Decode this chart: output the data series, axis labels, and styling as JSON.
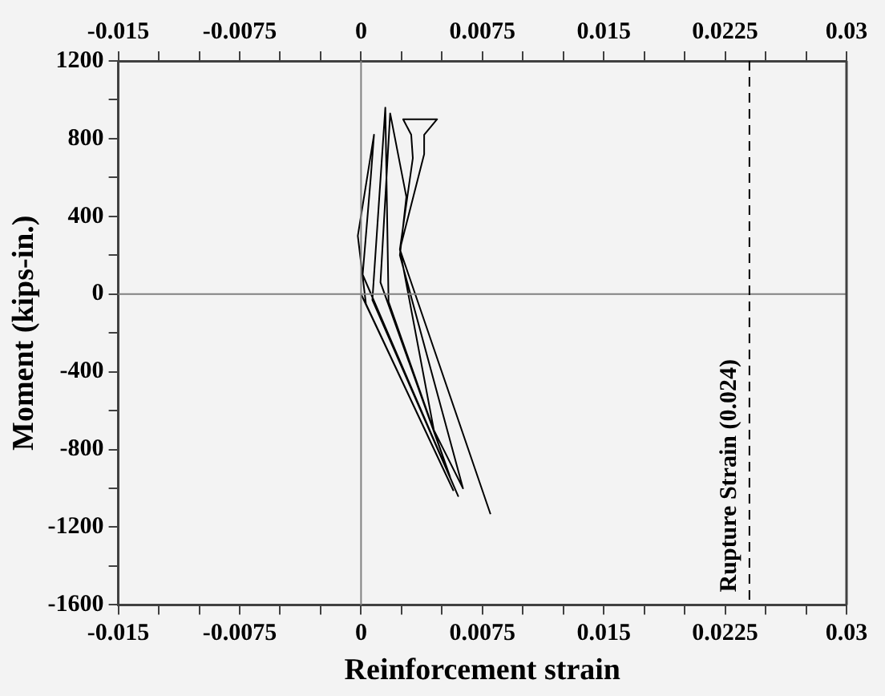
{
  "chart_data": {
    "type": "line",
    "xlabel": "Reinforcement strain",
    "ylabel": "Moment (kips-in.)",
    "x": [
      0,
      0.0057,
      0.0003,
      -0.0002,
      0.0008,
      0.0006,
      0.0001,
      0.006,
      0.0007,
      0.0015,
      0.0017,
      0.0055,
      0.0012,
      0.0018,
      0.0028,
      0.0024,
      0.0063,
      0.0045,
      0.0024,
      0.0039,
      0.0039,
      0.0047,
      0.0026,
      0.0031,
      0.0032,
      0.0024,
      0.008
    ],
    "series": [
      {
        "color": "#000000",
        "values": [
          0,
          -1010,
          -50,
          300,
          820,
          600,
          100,
          -1040,
          -30,
          960,
          -40,
          -940,
          60,
          930,
          500,
          200,
          -1000,
          -700,
          230,
          720,
          820,
          900,
          900,
          820,
          700,
          230,
          -1133
        ]
      }
    ],
    "xlim": [
      -0.015,
      0.03
    ],
    "xticks": [
      -0.015,
      {
        "value": -0.0125,
        "label": null
      },
      {
        "value": -0.01,
        "label": null
      },
      -0.0075,
      {
        "value": -0.005,
        "label": null
      },
      {
        "value": -0.0025,
        "label": null
      },
      0,
      {
        "value": 0.0025,
        "label": null
      },
      {
        "value": 0.005,
        "label": null
      },
      0.0075,
      {
        "value": 0.01,
        "label": null
      },
      {
        "value": 0.0125,
        "label": null
      },
      0.015,
      {
        "value": 0.0175,
        "label": null
      },
      {
        "value": 0.02,
        "label": null
      },
      0.0225,
      {
        "value": 0.025,
        "label": null
      },
      {
        "value": 0.0275,
        "label": null
      },
      0.03
    ],
    "x2lim": [
      -0.015,
      0.03
    ],
    "x2ticks": [
      -0.015,
      {
        "value": -0.0125,
        "label": null
      },
      {
        "value": -0.01,
        "label": null
      },
      -0.0075,
      {
        "value": -0.005,
        "label": null
      },
      {
        "value": -0.0025,
        "label": null
      },
      0,
      {
        "value": 0.0025,
        "label": null
      },
      {
        "value": 0.005,
        "label": null
      },
      0.0075,
      {
        "value": 0.01,
        "label": null
      },
      {
        "value": 0.0125,
        "label": null
      },
      0.015,
      {
        "value": 0.0175,
        "label": null
      },
      {
        "value": 0.02,
        "label": null
      },
      0.0225,
      {
        "value": 0.025,
        "label": null
      },
      {
        "value": 0.0275,
        "label": null
      },
      0.03
    ],
    "ylim": [
      -1600,
      1200
    ],
    "yticks": [
      -1600,
      {
        "value": -1400,
        "label": null
      },
      -1200,
      {
        "value": -1000,
        "label": null
      },
      -800,
      {
        "value": -600,
        "label": null
      },
      -400,
      {
        "value": -200,
        "label": null
      },
      0,
      {
        "value": 200,
        "label": null
      },
      400,
      {
        "value": 600,
        "label": null
      },
      800,
      {
        "value": 1000,
        "label": null
      },
      1200
    ],
    "ref_lines": [
      {
        "axis": "x",
        "value": 0,
        "color": "#808080"
      },
      {
        "axis": "y",
        "value": 0,
        "color": "#808080"
      },
      {
        "axis": "x",
        "value": 0.024,
        "label": "Rupture Strain (0.024)",
        "color": "#000000",
        "line_style": "dashed"
      }
    ],
    "grid": false,
    "legend": false,
    "marker": "none",
    "line_style": "solid"
  }
}
